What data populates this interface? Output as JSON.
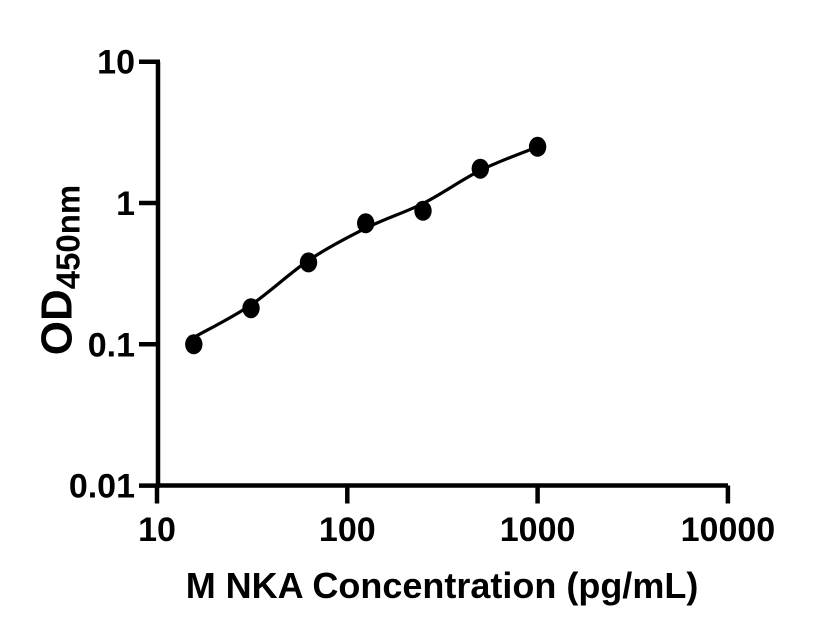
{
  "chart_data": {
    "type": "scatter",
    "subtype": "elisa-standard-curve",
    "title": "",
    "xlabel": "M NKA Concentration (pg/mL)",
    "ylabel": "OD",
    "ylabel_sub": "450nm",
    "x_scale": "log",
    "y_scale": "log",
    "xlim": [
      10,
      10000
    ],
    "ylim": [
      0.01,
      10
    ],
    "x_ticks": {
      "values": [
        10,
        100,
        1000,
        10000
      ],
      "labels": [
        "10",
        "100",
        "1000",
        "10000"
      ]
    },
    "y_ticks": {
      "values": [
        10,
        1,
        0.1,
        0.01
      ],
      "labels": [
        "10",
        "1",
        "0.1",
        "0.01"
      ]
    },
    "grid": false,
    "legend": "none",
    "colors": {
      "background": "#ffffff",
      "axis": "#000000",
      "marker": "#000000",
      "fit_line": "#000000"
    },
    "series": [
      {
        "marker": "filled-circle",
        "points": [
          {
            "x": 15.6,
            "y": 0.1
          },
          {
            "x": 31.2,
            "y": 0.18
          },
          {
            "x": 62.5,
            "y": 0.38
          },
          {
            "x": 125,
            "y": 0.72
          },
          {
            "x": 250,
            "y": 0.88
          },
          {
            "x": 500,
            "y": 1.75
          },
          {
            "x": 1000,
            "y": 2.5
          }
        ]
      }
    ],
    "fit_curve": {
      "points": [
        {
          "x": 16.2,
          "y": 0.115
        },
        {
          "x": 31.2,
          "y": 0.19
        },
        {
          "x": 63,
          "y": 0.395
        },
        {
          "x": 127,
          "y": 0.67
        },
        {
          "x": 253,
          "y": 1.0
        },
        {
          "x": 504,
          "y": 1.71
        },
        {
          "x": 1000,
          "y": 2.5
        }
      ]
    }
  }
}
